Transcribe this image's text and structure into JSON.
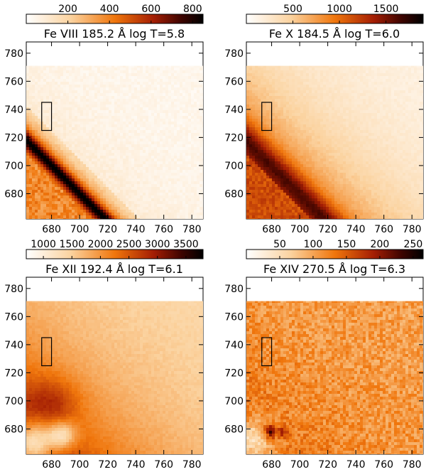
{
  "figure": {
    "axes": {
      "x_ticks": [
        680,
        700,
        720,
        740,
        760,
        780
      ],
      "y_ticks": [
        680,
        700,
        720,
        740,
        760,
        780
      ],
      "xlim": [
        662,
        788
      ],
      "ylim": [
        662,
        788
      ],
      "data_top_y": 771
    },
    "panels": [
      {
        "id": "fe-viii",
        "title": "Fe VIII  185.2 Å  log T=5.8",
        "colorbar": {
          "ticks": [
            "200",
            "400",
            "600",
            "800"
          ],
          "range": [
            0,
            850
          ]
        },
        "pattern": "limb-faint",
        "box": {
          "x": [
            673,
            680
          ],
          "y": [
            725,
            745
          ]
        },
        "chart_data": {
          "type": "heatmap",
          "title": "Fe VIII  185.2 Å  log T=5.8",
          "x_ticks": [
            680,
            700,
            720,
            740,
            760,
            780
          ],
          "y_ticks": [
            680,
            700,
            720,
            740,
            760,
            780
          ],
          "colorbar_ticks": [
            200,
            400,
            600,
            800
          ],
          "colorbar_range": [
            0,
            850
          ]
        }
      },
      {
        "id": "fe-x",
        "title": "Fe X  184.5 Å  log T=6.0",
        "colorbar": {
          "ticks": [
            "500",
            "1000",
            "1500"
          ],
          "range": [
            0,
            1900
          ]
        },
        "pattern": "limb-smooth",
        "box": {
          "x": [
            673,
            680
          ],
          "y": [
            725,
            745
          ]
        },
        "chart_data": {
          "type": "heatmap",
          "title": "Fe X  184.5 Å  log T=6.0",
          "x_ticks": [
            680,
            700,
            720,
            740,
            760,
            780
          ],
          "y_ticks": [
            680,
            700,
            720,
            740,
            760,
            780
          ],
          "colorbar_ticks": [
            500,
            1000,
            1500
          ],
          "colorbar_range": [
            0,
            1900
          ]
        }
      },
      {
        "id": "fe-xii",
        "title": "Fe XII  192.4 Å  log T=6.1",
        "colorbar": {
          "ticks": [
            "1000",
            "1500",
            "2000",
            "2500",
            "3000",
            "3500"
          ],
          "range": [
            700,
            3800
          ]
        },
        "pattern": "diffuse-bright",
        "box": {
          "x": [
            673,
            680
          ],
          "y": [
            725,
            745
          ]
        },
        "chart_data": {
          "type": "heatmap",
          "title": "Fe XII  192.4 Å  log T=6.1",
          "x_ticks": [
            680,
            700,
            720,
            740,
            760,
            780
          ],
          "y_ticks": [
            680,
            700,
            720,
            740,
            760,
            780
          ],
          "colorbar_ticks": [
            1000,
            1500,
            2000,
            2500,
            3000,
            3500
          ],
          "colorbar_range": [
            700,
            3800
          ]
        }
      },
      {
        "id": "fe-xiv",
        "title": "Fe XIV  270.5 Å  log T=6.3",
        "colorbar": {
          "ticks": [
            "50",
            "100",
            "150",
            "200",
            "250"
          ],
          "range": [
            0,
            265
          ]
        },
        "pattern": "noisy-diffuse",
        "box": {
          "x": [
            673,
            680
          ],
          "y": [
            725,
            745
          ]
        },
        "chart_data": {
          "type": "heatmap",
          "title": "Fe XIV  270.5 Å  log T=6.3",
          "x_ticks": [
            680,
            700,
            720,
            740,
            760,
            780
          ],
          "y_ticks": [
            680,
            700,
            720,
            740,
            760,
            780
          ],
          "colorbar_ticks": [
            50,
            100,
            150,
            200,
            250
          ],
          "colorbar_range": [
            0,
            265
          ]
        }
      }
    ]
  }
}
